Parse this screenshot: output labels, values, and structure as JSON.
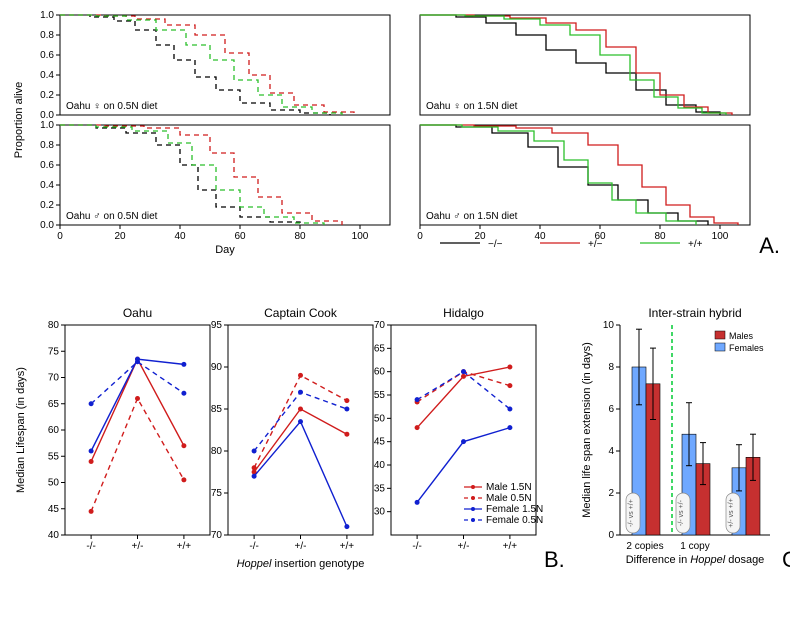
{
  "colors": {
    "black": "#000000",
    "red": "#d01c1c",
    "green": "#2bbf2b",
    "blue": "#1020d0",
    "darkRed": "#aa1010",
    "lightBlue": "#6fa8ff",
    "barRed": "#c63030",
    "gray": "#888888",
    "greenDash": "#00cc33"
  },
  "panelA": {
    "label": "A.",
    "xAxisLabel": "Day",
    "yAxisLabel": "Proportion alive",
    "xlim": [
      0,
      110
    ],
    "xticks": [
      0,
      20,
      40,
      60,
      80,
      100
    ],
    "ylim": [
      0,
      1.0
    ],
    "yticks": [
      0.0,
      0.2,
      0.4,
      0.6,
      0.8,
      1.0
    ],
    "legend": [
      {
        "key": "neg",
        "label": "−/−",
        "color": "#000000"
      },
      {
        "key": "het",
        "label": "+/−",
        "color": "#d01c1c"
      },
      {
        "key": "pos",
        "label": "+/+",
        "color": "#2bbf2b"
      }
    ],
    "subplots": [
      {
        "inset": "Oahu ♀ on 0.5N diet",
        "dashed": true,
        "curves": {
          "neg": [
            [
              0,
              1.0
            ],
            [
              10,
              0.98
            ],
            [
              18,
              0.94
            ],
            [
              25,
              0.85
            ],
            [
              32,
              0.7
            ],
            [
              38,
              0.55
            ],
            [
              45,
              0.38
            ],
            [
              52,
              0.25
            ],
            [
              60,
              0.12
            ],
            [
              70,
              0.05
            ],
            [
              80,
              0.02
            ],
            [
              90,
              0.0
            ]
          ],
          "het": [
            [
              0,
              1.0
            ],
            [
              15,
              0.99
            ],
            [
              25,
              0.96
            ],
            [
              35,
              0.9
            ],
            [
              45,
              0.8
            ],
            [
              55,
              0.62
            ],
            [
              63,
              0.4
            ],
            [
              70,
              0.22
            ],
            [
              78,
              0.1
            ],
            [
              88,
              0.03
            ],
            [
              98,
              0.0
            ]
          ],
          "pos": [
            [
              0,
              1.0
            ],
            [
              12,
              0.99
            ],
            [
              22,
              0.95
            ],
            [
              32,
              0.85
            ],
            [
              42,
              0.7
            ],
            [
              50,
              0.55
            ],
            [
              58,
              0.35
            ],
            [
              66,
              0.2
            ],
            [
              74,
              0.08
            ],
            [
              84,
              0.02
            ],
            [
              94,
              0.0
            ]
          ]
        }
      },
      {
        "inset": "Oahu ♀ on 1.5N diet",
        "dashed": false,
        "curves": {
          "neg": [
            [
              0,
              1.0
            ],
            [
              12,
              0.98
            ],
            [
              22,
              0.92
            ],
            [
              32,
              0.8
            ],
            [
              42,
              0.65
            ],
            [
              52,
              0.52
            ],
            [
              62,
              0.42
            ],
            [
              72,
              0.25
            ],
            [
              82,
              0.1
            ],
            [
              92,
              0.03
            ],
            [
              100,
              0.0
            ]
          ],
          "het": [
            [
              0,
              1.0
            ],
            [
              18,
              0.99
            ],
            [
              30,
              0.97
            ],
            [
              42,
              0.92
            ],
            [
              52,
              0.85
            ],
            [
              62,
              0.68
            ],
            [
              72,
              0.42
            ],
            [
              80,
              0.2
            ],
            [
              88,
              0.08
            ],
            [
              96,
              0.02
            ],
            [
              104,
              0.0
            ]
          ],
          "pos": [
            [
              0,
              1.0
            ],
            [
              15,
              0.99
            ],
            [
              28,
              0.96
            ],
            [
              40,
              0.9
            ],
            [
              50,
              0.8
            ],
            [
              60,
              0.6
            ],
            [
              70,
              0.35
            ],
            [
              78,
              0.18
            ],
            [
              86,
              0.07
            ],
            [
              94,
              0.02
            ],
            [
              102,
              0.0
            ]
          ]
        }
      },
      {
        "inset": "Oahu ♂ on 0.5N diet",
        "dashed": true,
        "curves": {
          "neg": [
            [
              0,
              1.0
            ],
            [
              12,
              0.97
            ],
            [
              22,
              0.92
            ],
            [
              32,
              0.8
            ],
            [
              40,
              0.6
            ],
            [
              46,
              0.35
            ],
            [
              52,
              0.18
            ],
            [
              60,
              0.08
            ],
            [
              70,
              0.03
            ],
            [
              80,
              0.0
            ]
          ],
          "het": [
            [
              0,
              1.0
            ],
            [
              15,
              0.99
            ],
            [
              28,
              0.97
            ],
            [
              40,
              0.9
            ],
            [
              50,
              0.72
            ],
            [
              58,
              0.48
            ],
            [
              66,
              0.28
            ],
            [
              74,
              0.12
            ],
            [
              84,
              0.04
            ],
            [
              94,
              0.0
            ]
          ],
          "pos": [
            [
              0,
              1.0
            ],
            [
              12,
              0.98
            ],
            [
              24,
              0.94
            ],
            [
              36,
              0.82
            ],
            [
              44,
              0.6
            ],
            [
              52,
              0.35
            ],
            [
              60,
              0.18
            ],
            [
              68,
              0.08
            ],
            [
              78,
              0.02
            ],
            [
              88,
              0.0
            ]
          ]
        }
      },
      {
        "inset": "Oahu ♂ on 1.5N diet",
        "dashed": false,
        "curves": {
          "neg": [
            [
              0,
              1.0
            ],
            [
              12,
              0.98
            ],
            [
              24,
              0.92
            ],
            [
              36,
              0.78
            ],
            [
              46,
              0.58
            ],
            [
              56,
              0.4
            ],
            [
              66,
              0.25
            ],
            [
              76,
              0.12
            ],
            [
              86,
              0.04
            ],
            [
              96,
              0.0
            ]
          ],
          "het": [
            [
              0,
              1.0
            ],
            [
              18,
              0.99
            ],
            [
              32,
              0.97
            ],
            [
              44,
              0.92
            ],
            [
              56,
              0.8
            ],
            [
              66,
              0.6
            ],
            [
              74,
              0.38
            ],
            [
              82,
              0.2
            ],
            [
              90,
              0.08
            ],
            [
              98,
              0.02
            ],
            [
              106,
              0.0
            ]
          ],
          "pos": [
            [
              0,
              1.0
            ],
            [
              14,
              0.98
            ],
            [
              26,
              0.94
            ],
            [
              38,
              0.84
            ],
            [
              48,
              0.65
            ],
            [
              56,
              0.42
            ],
            [
              64,
              0.25
            ],
            [
              72,
              0.12
            ],
            [
              82,
              0.04
            ],
            [
              92,
              0.0
            ]
          ]
        }
      }
    ]
  },
  "panelB": {
    "label": "B.",
    "yAxisLabel": "Median Lifespan (in days)",
    "xAxisLabelPrefix": "Hoppel",
    "xAxisLabelSuffix": " insertion genotype",
    "categories": [
      "-/-",
      "+/-",
      "+/+"
    ],
    "legend": [
      {
        "key": "m15",
        "label": "Male 1.5N",
        "color": "#d01c1c",
        "dash": false
      },
      {
        "key": "m05",
        "label": "Male 0.5N",
        "color": "#d01c1c",
        "dash": true
      },
      {
        "key": "f15",
        "label": "Female 1.5N",
        "color": "#1020d0",
        "dash": false
      },
      {
        "key": "f05",
        "label": "Female 0.5N",
        "color": "#1020d0",
        "dash": true
      }
    ],
    "subplots": [
      {
        "title": "Oahu",
        "ylim": [
          40,
          80
        ],
        "yticks": [
          40,
          45,
          50,
          55,
          60,
          65,
          70,
          75,
          80
        ],
        "series": {
          "m15": [
            54,
            73.5,
            57
          ],
          "m05": [
            44.5,
            66,
            50.5
          ],
          "f15": [
            56,
            73.5,
            72.5
          ],
          "f05": [
            65,
            73,
            67
          ]
        }
      },
      {
        "title": "Captain Cook",
        "ylim": [
          70,
          95
        ],
        "yticks": [
          70,
          75,
          80,
          85,
          90,
          95
        ],
        "series": {
          "m15": [
            77.5,
            85,
            82
          ],
          "m05": [
            78,
            89,
            86
          ],
          "f15": [
            77,
            83.5,
            71
          ],
          "f05": [
            80,
            87,
            85
          ]
        }
      },
      {
        "title": "Hidalgo",
        "ylim": [
          25,
          70
        ],
        "yticks": [
          30,
          35,
          40,
          45,
          50,
          55,
          60,
          65,
          70
        ],
        "series": {
          "m15": [
            48,
            59,
            61
          ],
          "m05": [
            53.5,
            60,
            57
          ],
          "f15": [
            32,
            45,
            48
          ],
          "f05": [
            54,
            60,
            52
          ]
        }
      }
    ]
  },
  "panelC": {
    "label": "C.",
    "title": "Inter-strain hybrid",
    "yAxisLabel": "Median life span extension (in days)",
    "xAxisLabelPrefix": "Difference in ",
    "xAxisLabelItalic": "Hoppel",
    "xAxisLabelSuffix": " dosage",
    "ylim": [
      0,
      10
    ],
    "yticks": [
      0,
      2,
      4,
      6,
      8,
      10
    ],
    "groups": [
      {
        "label": "2 copies",
        "pill": "-/- vs +/+",
        "female": {
          "v": 8.0,
          "err": 1.8
        },
        "male": {
          "v": 7.2,
          "err": 1.7
        }
      },
      {
        "label": "1 copy",
        "pill": "-/- vs +/-",
        "female": {
          "v": 4.8,
          "err": 1.5
        },
        "male": {
          "v": 3.4,
          "err": 1.0
        }
      },
      {
        "label": "",
        "pill": "+/- vs +/+",
        "female": {
          "v": 3.2,
          "err": 1.1
        },
        "male": {
          "v": 3.7,
          "err": 1.1
        }
      }
    ],
    "legend": [
      {
        "label": "Males",
        "color": "#c63030"
      },
      {
        "label": "Females",
        "color": "#6fa8ff"
      }
    ]
  }
}
